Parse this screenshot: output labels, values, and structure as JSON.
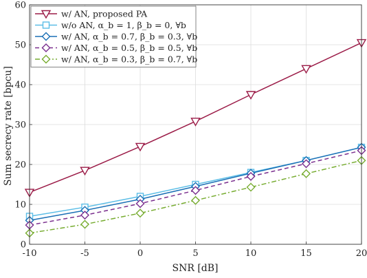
{
  "chart_data": {
    "type": "line",
    "xlabel": "SNR [dB]",
    "ylabel": "Sum secrecy rate [bpcu]",
    "x": [
      -10,
      -5,
      0,
      5,
      10,
      15,
      20
    ],
    "xlim": [
      -10,
      20
    ],
    "ylim": [
      0,
      60
    ],
    "xticks": [
      "-10",
      "-5",
      "0",
      "5",
      "10",
      "15",
      "20"
    ],
    "yticks": [
      "0",
      "10",
      "20",
      "30",
      "40",
      "50",
      "60"
    ],
    "grid": true,
    "legend_position": "top-left",
    "series": [
      {
        "name": "w/ AN, proposed PA",
        "values": [
          13.0,
          18.5,
          24.5,
          30.8,
          37.5,
          44.0,
          50.5
        ],
        "color": "#9b1b47",
        "marker": "triangle-down",
        "dash": "solid"
      },
      {
        "name": "w/o AN, α_b = 1, β_b = 0, ∀b",
        "values": [
          7.0,
          9.3,
          12.0,
          15.0,
          18.0,
          21.0,
          24.3
        ],
        "color": "#5bbde6",
        "marker": "square",
        "dash": "solid"
      },
      {
        "name": "w/ AN, α_b = 0.7, β_b = 0.3, ∀b",
        "values": [
          6.0,
          8.5,
          11.3,
          14.5,
          17.8,
          21.0,
          24.3
        ],
        "color": "#1a6fb5",
        "marker": "diamond",
        "dash": "solid"
      },
      {
        "name": "w/ AN, α_b = 0.5, β_b = 0.5, ∀b",
        "values": [
          4.8,
          7.3,
          10.2,
          13.5,
          17.0,
          20.2,
          23.5
        ],
        "color": "#7a2e8e",
        "marker": "diamond",
        "dash": "dashed"
      },
      {
        "name": "w/ AN, α_b = 0.3, β_b = 0.7, ∀b",
        "values": [
          2.8,
          5.0,
          7.8,
          11.0,
          14.3,
          17.7,
          21.0
        ],
        "color": "#77ac30",
        "marker": "diamond",
        "dash": "dashdot"
      }
    ]
  }
}
